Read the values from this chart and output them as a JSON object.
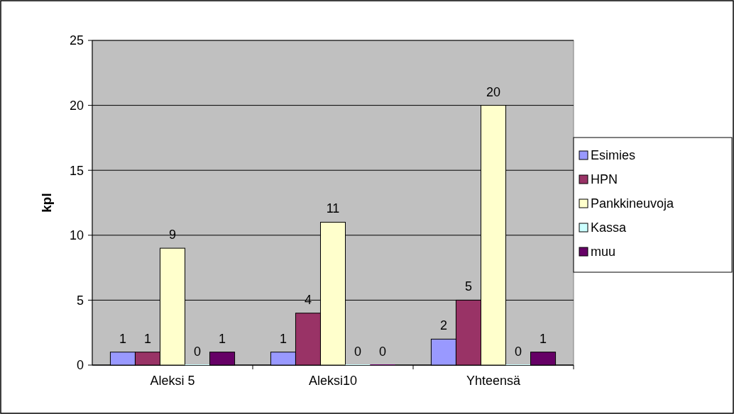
{
  "chart_data": {
    "type": "bar",
    "ylabel": "kpl",
    "categories": [
      "Aleksi 5",
      "Aleksi10",
      "Yhteensä"
    ],
    "series": [
      {
        "name": "Esimies",
        "color": "#9999ff",
        "values": [
          1,
          1,
          2
        ]
      },
      {
        "name": "HPN",
        "color": "#993366",
        "values": [
          1,
          4,
          5
        ]
      },
      {
        "name": "Pankkineuvoja",
        "color": "#ffffcc",
        "values": [
          9,
          11,
          20
        ]
      },
      {
        "name": "Kassa",
        "color": "#ccffff",
        "values": [
          0,
          0,
          0
        ]
      },
      {
        "name": "muu",
        "color": "#660066",
        "values": [
          1,
          0,
          1
        ]
      }
    ],
    "ylim": [
      0,
      25
    ],
    "yticks": [
      0,
      5,
      10,
      15,
      20,
      25
    ],
    "grid": "y",
    "legend": "right",
    "data_labels": true
  }
}
